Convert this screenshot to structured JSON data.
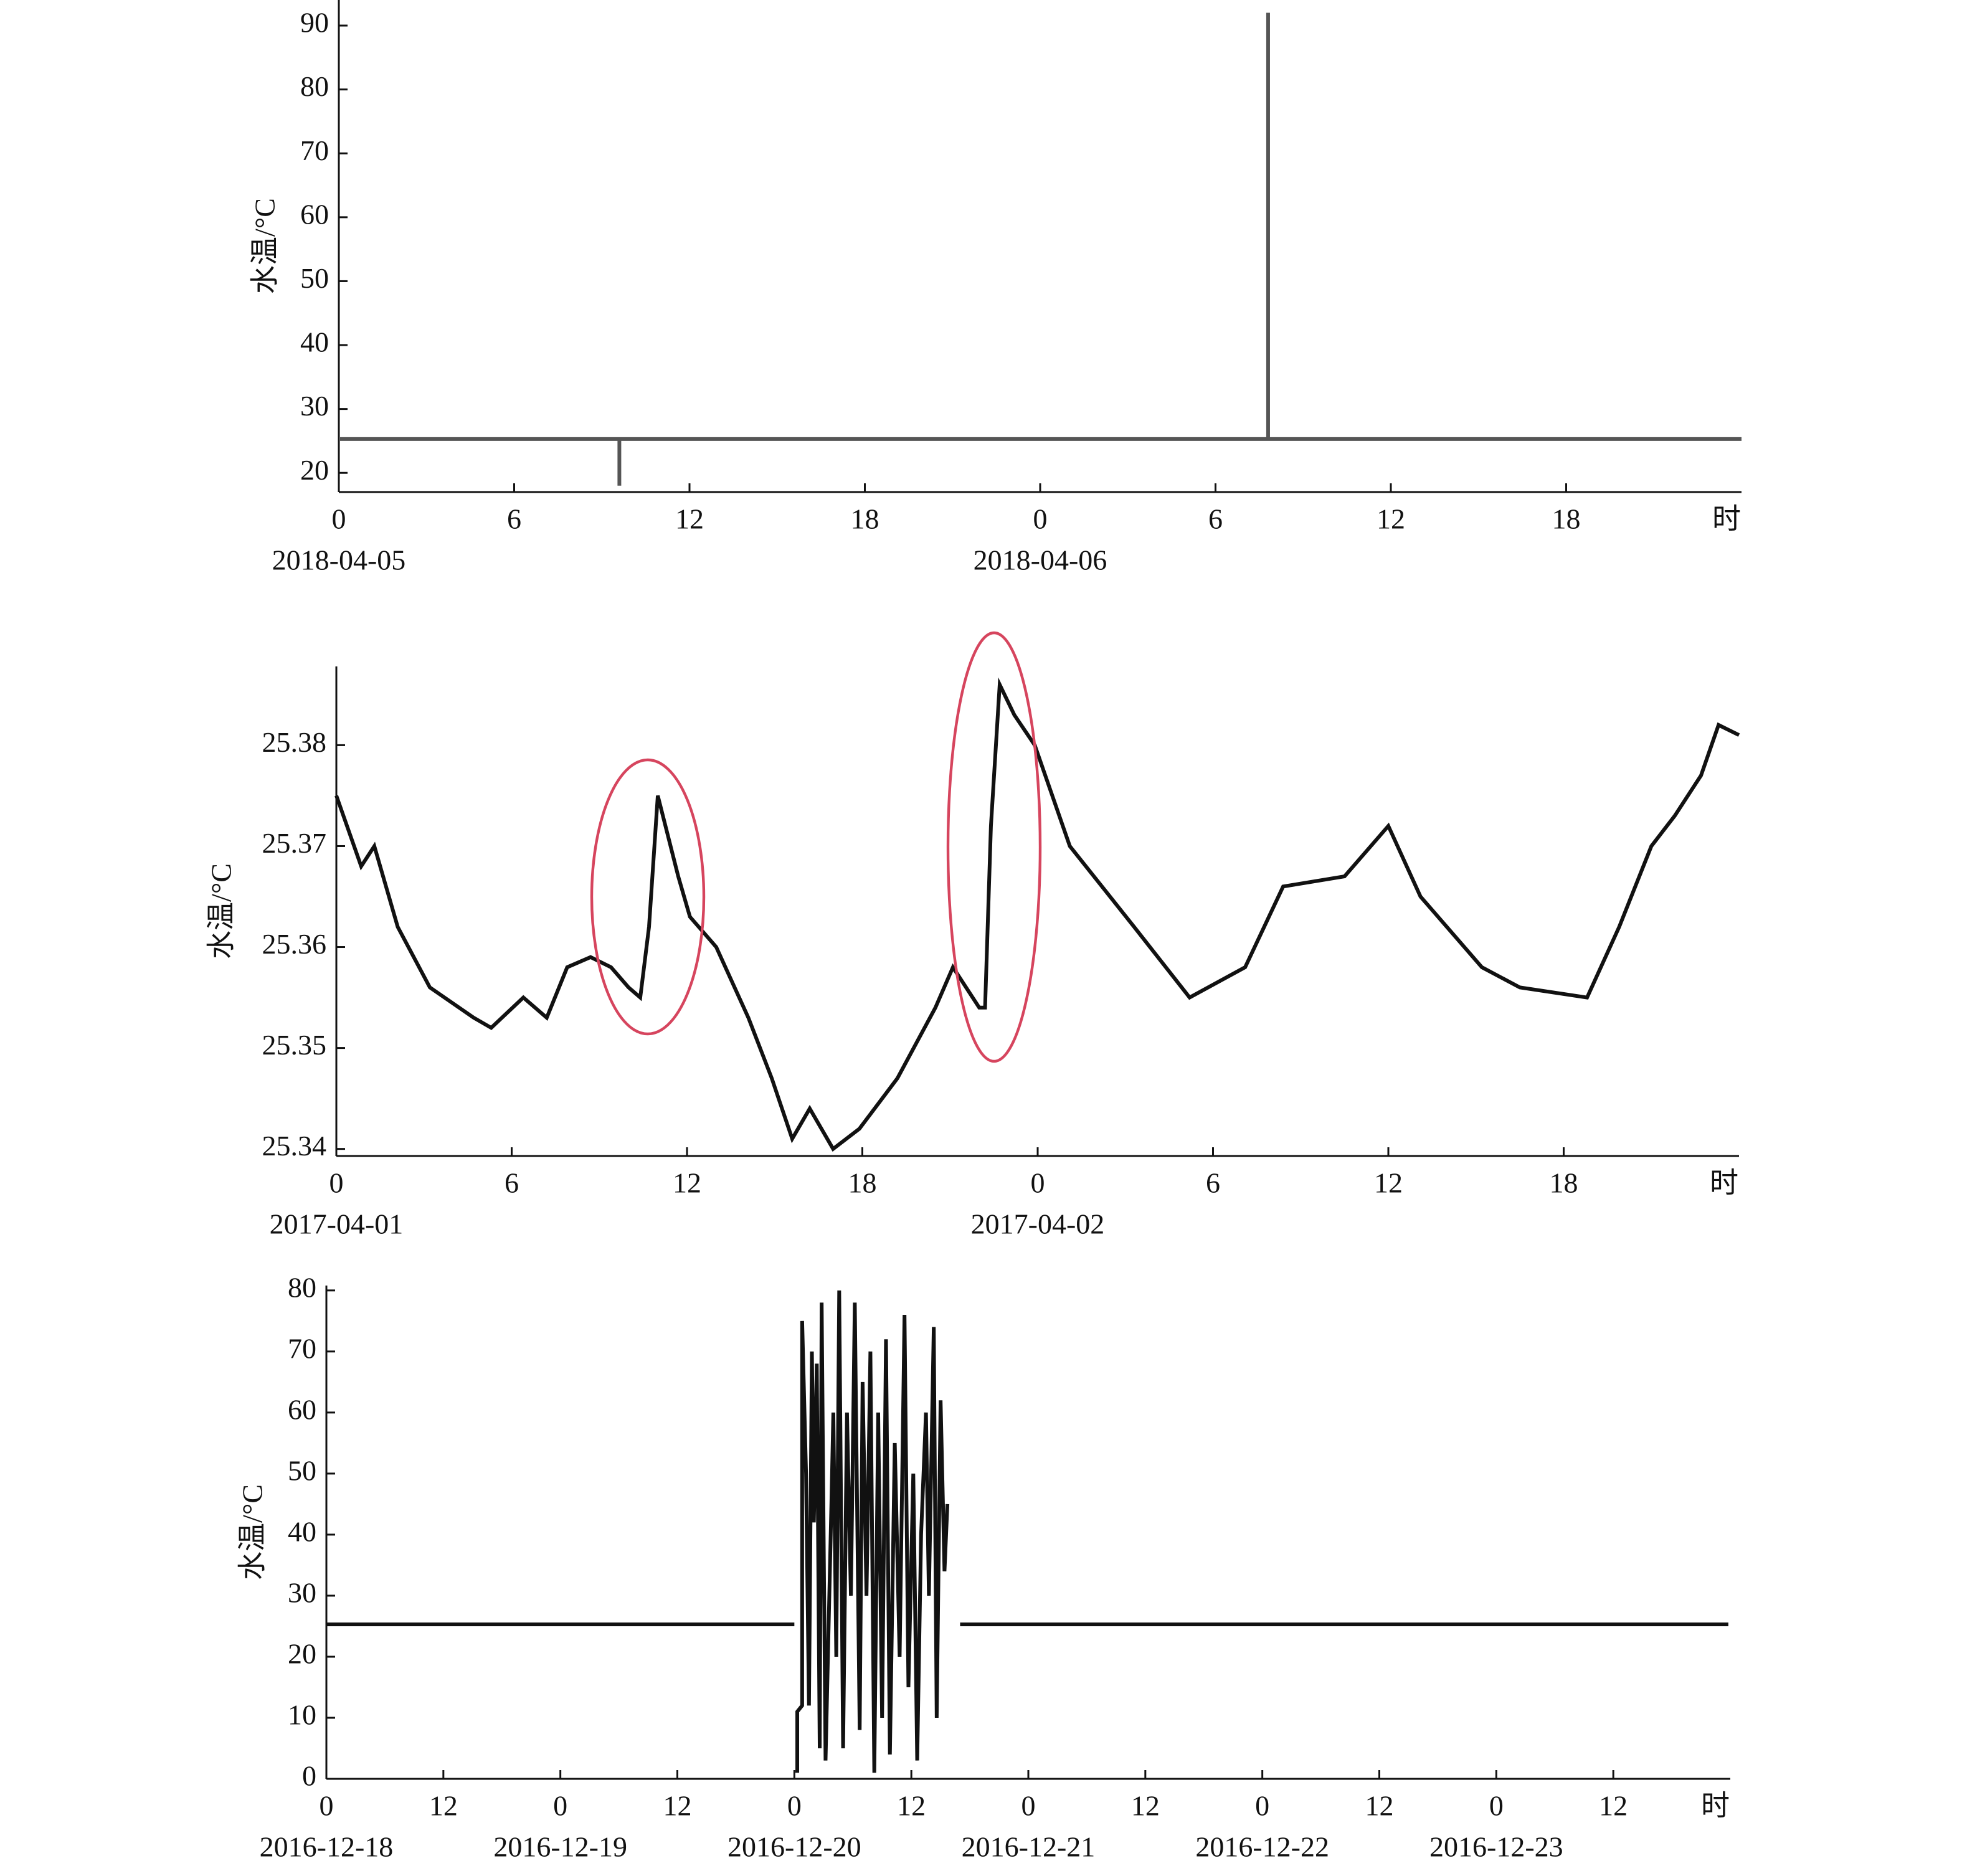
{
  "chart_data": [
    {
      "type": "line",
      "y_label": "水温/°C",
      "x_unit": "时",
      "xlim": [
        0,
        48
      ],
      "ylim": [
        17,
        94
      ],
      "xticks": [
        0,
        6,
        12,
        18,
        {
          "value": 24,
          "label": "0"
        },
        {
          "value": 30,
          "label": "6"
        },
        {
          "value": 36,
          "label": "12"
        },
        {
          "value": 42,
          "label": "18"
        }
      ],
      "yticks": [
        20,
        30,
        40,
        50,
        60,
        70,
        80,
        90
      ],
      "x_dates": [
        {
          "value": 0,
          "label": "2018-04-05"
        },
        {
          "value": 24,
          "label": "2018-04-06"
        }
      ],
      "x": [
        0,
        9.6,
        9.6,
        9.6,
        31.8,
        31.8,
        31.8,
        48
      ],
      "series": [
        {
          "color": "#555555",
          "values": [
            25.3,
            25.3,
            18,
            25.3,
            25.3,
            92,
            25.3,
            25.3
          ]
        }
      ]
    },
    {
      "type": "line",
      "y_label": "水温/°C",
      "x_unit": "时",
      "xlim": [
        0,
        48
      ],
      "ylim": [
        25.3393,
        25.3878
      ],
      "xticks": [
        0,
        6,
        12,
        18,
        {
          "value": 24,
          "label": "0"
        },
        {
          "value": 30,
          "label": "6"
        },
        {
          "value": 36,
          "label": "12"
        },
        {
          "value": 42,
          "label": "18"
        }
      ],
      "yticks": [
        25.34,
        25.35,
        25.36,
        25.37,
        25.38
      ],
      "x_dates": [
        {
          "value": 0,
          "label": "2017-04-01"
        },
        {
          "value": 24,
          "label": "2017-04-02"
        }
      ],
      "x": [
        0,
        0.85,
        1.3,
        2.1,
        3.2,
        4.7,
        5.3,
        6.4,
        7.2,
        7.9,
        8.7,
        9.4,
        10,
        10.4,
        10.7,
        11,
        11.7,
        12.1,
        13,
        14.1,
        14.9,
        15.6,
        16.2,
        17,
        17.9,
        19.2,
        20.5,
        21.1,
        22,
        22.2,
        22.4,
        22.7,
        23.2,
        23.9,
        25.1,
        27.3,
        29.2,
        31.1,
        32.4,
        34.5,
        36,
        37.1,
        39.2,
        40.5,
        42.8,
        43.9,
        45,
        45.8,
        46.7,
        47.3,
        48
      ],
      "series": [
        {
          "color": "#111111",
          "values": [
            25.375,
            25.368,
            25.37,
            25.362,
            25.356,
            25.353,
            25.352,
            25.355,
            25.353,
            25.358,
            25.359,
            25.358,
            25.356,
            25.355,
            25.362,
            25.375,
            25.367,
            25.363,
            25.36,
            25.353,
            25.347,
            25.341,
            25.344,
            25.34,
            25.342,
            25.347,
            25.354,
            25.358,
            25.354,
            25.354,
            25.372,
            25.386,
            25.383,
            25.38,
            25.37,
            25.362,
            25.355,
            25.358,
            25.366,
            25.367,
            25.372,
            25.365,
            25.358,
            25.356,
            25.355,
            25.362,
            25.37,
            25.373,
            25.377,
            25.382,
            25.381
          ]
        }
      ]
    },
    {
      "type": "line",
      "y_label": "水温/°C",
      "x_unit": "时",
      "xlim": [
        0,
        144
      ],
      "ylim": [
        0,
        80.8
      ],
      "xticks": [
        0,
        12,
        {
          "value": 24,
          "label": "0"
        },
        {
          "value": 36,
          "label": "12"
        },
        {
          "value": 48,
          "label": "0"
        },
        {
          "value": 60,
          "label": "12"
        },
        {
          "value": 72,
          "label": "0"
        },
        {
          "value": 84,
          "label": "12"
        },
        {
          "value": 96,
          "label": "0"
        },
        {
          "value": 108,
          "label": "12"
        },
        {
          "value": 120,
          "label": "0"
        },
        {
          "value": 132,
          "label": "12"
        }
      ],
      "yticks": [
        0,
        10,
        20,
        30,
        40,
        50,
        60,
        70,
        80
      ],
      "x_dates": [
        {
          "value": 0,
          "label": "2016-12-18"
        },
        {
          "value": 24,
          "label": "2016-12-19"
        },
        {
          "value": 48,
          "label": "2016-12-20"
        },
        {
          "value": 72,
          "label": "2016-12-21"
        },
        {
          "value": 96,
          "label": "2016-12-22"
        },
        {
          "value": 120,
          "label": "2016-12-23"
        }
      ],
      "x": [
        0,
        48,
        48.1,
        48.3,
        48.3,
        48.8,
        48.8,
        49.2,
        49.5,
        49.8,
        50,
        50.3,
        50.6,
        50.8,
        51.2,
        51.8,
        52,
        52.3,
        52.6,
        53,
        53.4,
        53.8,
        54.2,
        54.7,
        55,
        55.4,
        55.8,
        56.2,
        56.6,
        57,
        57.4,
        57.8,
        58.3,
        58.8,
        59.3,
        59.7,
        60.2,
        60.6,
        61,
        61.5,
        61.8,
        62.3,
        62.6,
        63,
        63.4,
        63.7,
        64.5,
        65,
        143.8
      ],
      "series": [
        {
          "color": "#111111",
          "values": [
            25.3,
            25.3,
            null,
            1,
            11,
            12,
            75,
            50,
            12,
            70,
            42,
            68,
            5,
            78,
            3,
            45,
            60,
            20,
            80,
            5,
            60,
            30,
            78,
            8,
            65,
            30,
            70,
            1,
            60,
            10,
            72,
            4,
            55,
            20,
            76,
            15,
            50,
            3,
            40,
            60,
            30,
            74,
            10,
            62,
            34,
            45,
            null,
            25.3,
            25.3
          ]
        }
      ]
    }
  ]
}
